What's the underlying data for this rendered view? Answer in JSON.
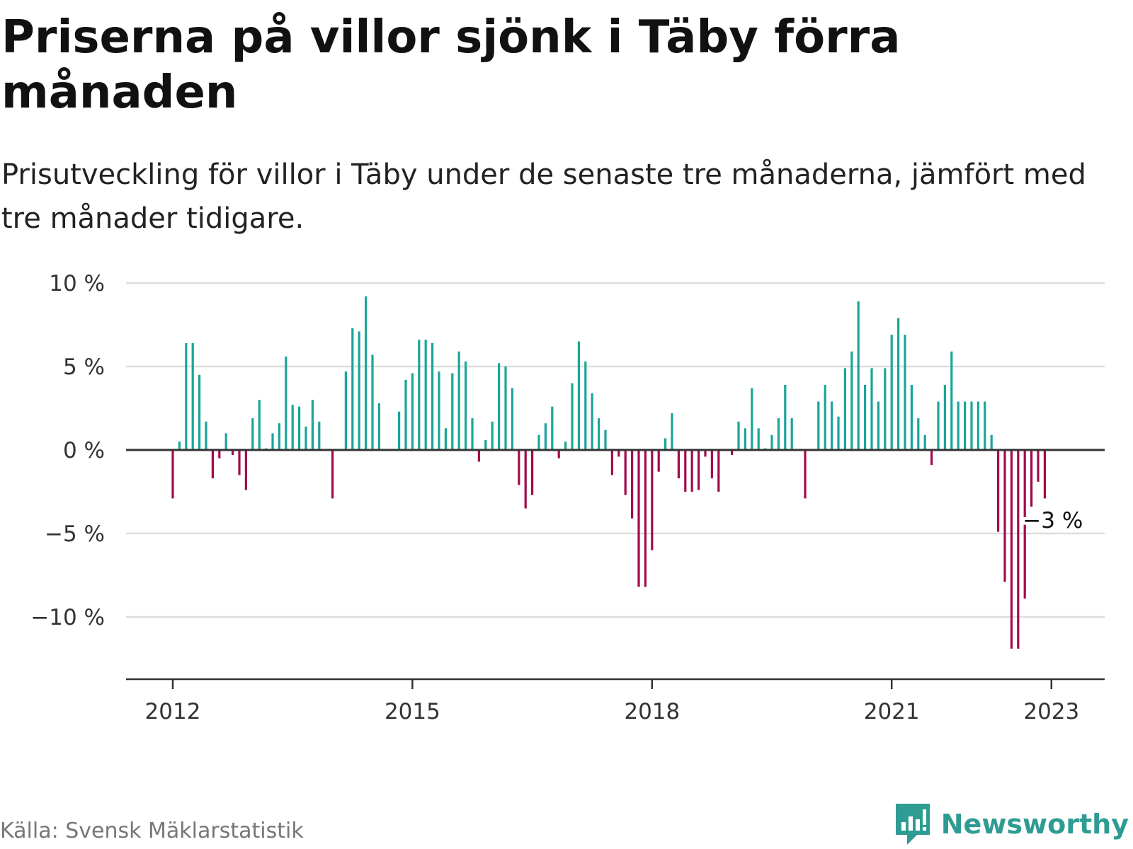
{
  "title": "Priserna på villor sjönk i Täby förra månaden",
  "subtitle": "Prisutveckling för villor i Täby under de senaste tre månaderna, jämfört med tre månader tidigare.",
  "source": "Källa: Svensk Mäklarstatistik",
  "brand": "Newsworthy",
  "colors": {
    "positive": "#1aa599",
    "negative": "#a30b4c",
    "grid": "#dddddd",
    "axis": "#333333",
    "brand": "#2e9c93"
  },
  "chart_data": {
    "type": "bar",
    "start": "2012-01",
    "end": "2023-01",
    "xticks": [
      {
        "date": "2012-01",
        "label": "2012"
      },
      {
        "date": "2015-01",
        "label": "2015"
      },
      {
        "date": "2018-01",
        "label": "2018"
      },
      {
        "date": "2021-01",
        "label": "2021"
      },
      {
        "date": "2023-01",
        "label": "2023"
      }
    ],
    "yticks": [
      {
        "value": 10,
        "label": "10 %"
      },
      {
        "value": 5,
        "label": "5 %"
      },
      {
        "value": 0,
        "label": "0 %"
      },
      {
        "value": -5,
        "label": "−5 %"
      },
      {
        "value": -10,
        "label": "−10 %"
      }
    ],
    "ylim": [
      -13.8,
      10
    ],
    "grid": true,
    "annotation": {
      "date": "2023-01",
      "value": -2.9,
      "label": "−3 %"
    },
    "values": [
      -2.9,
      0.5,
      6.4,
      6.4,
      4.5,
      1.7,
      -1.7,
      -0.5,
      1.0,
      -0.3,
      -1.5,
      -2.4,
      1.9,
      3.0,
      0.1,
      1.0,
      1.6,
      5.6,
      2.7,
      2.6,
      1.4,
      3.0,
      1.7,
      0.0,
      -2.9,
      0.0,
      4.7,
      7.3,
      7.1,
      9.2,
      5.7,
      2.8,
      0.0,
      0.0,
      2.3,
      4.2,
      4.6,
      6.6,
      6.6,
      6.4,
      4.7,
      1.3,
      4.6,
      5.9,
      5.3,
      1.9,
      -0.7,
      0.6,
      1.7,
      5.2,
      5.0,
      3.7,
      -2.1,
      -3.5,
      -2.7,
      0.9,
      1.6,
      2.6,
      -0.5,
      0.5,
      4.0,
      6.5,
      5.3,
      3.4,
      1.9,
      1.2,
      -1.5,
      -0.4,
      -2.7,
      -4.1,
      -8.2,
      -8.2,
      -6.0,
      -1.3,
      0.7,
      2.2,
      -1.7,
      -2.5,
      -2.5,
      -2.4,
      -0.4,
      -1.7,
      -2.5,
      0.0,
      -0.3,
      1.7,
      1.3,
      3.7,
      1.3,
      0.1,
      0.9,
      1.9,
      3.9,
      1.9,
      0.0,
      -2.9,
      0.0,
      2.9,
      3.9,
      2.9,
      2.0,
      4.9,
      5.9,
      8.9,
      3.9,
      4.9,
      2.9,
      4.9,
      6.9,
      7.9,
      6.9,
      3.9,
      1.9,
      0.9,
      -0.9,
      2.9,
      3.9,
      5.9,
      2.9,
      2.9,
      2.9,
      2.9,
      2.9,
      0.9,
      -4.9,
      -7.9,
      -11.9,
      -11.9,
      -8.9,
      -3.4,
      -1.9,
      -2.9
    ]
  }
}
